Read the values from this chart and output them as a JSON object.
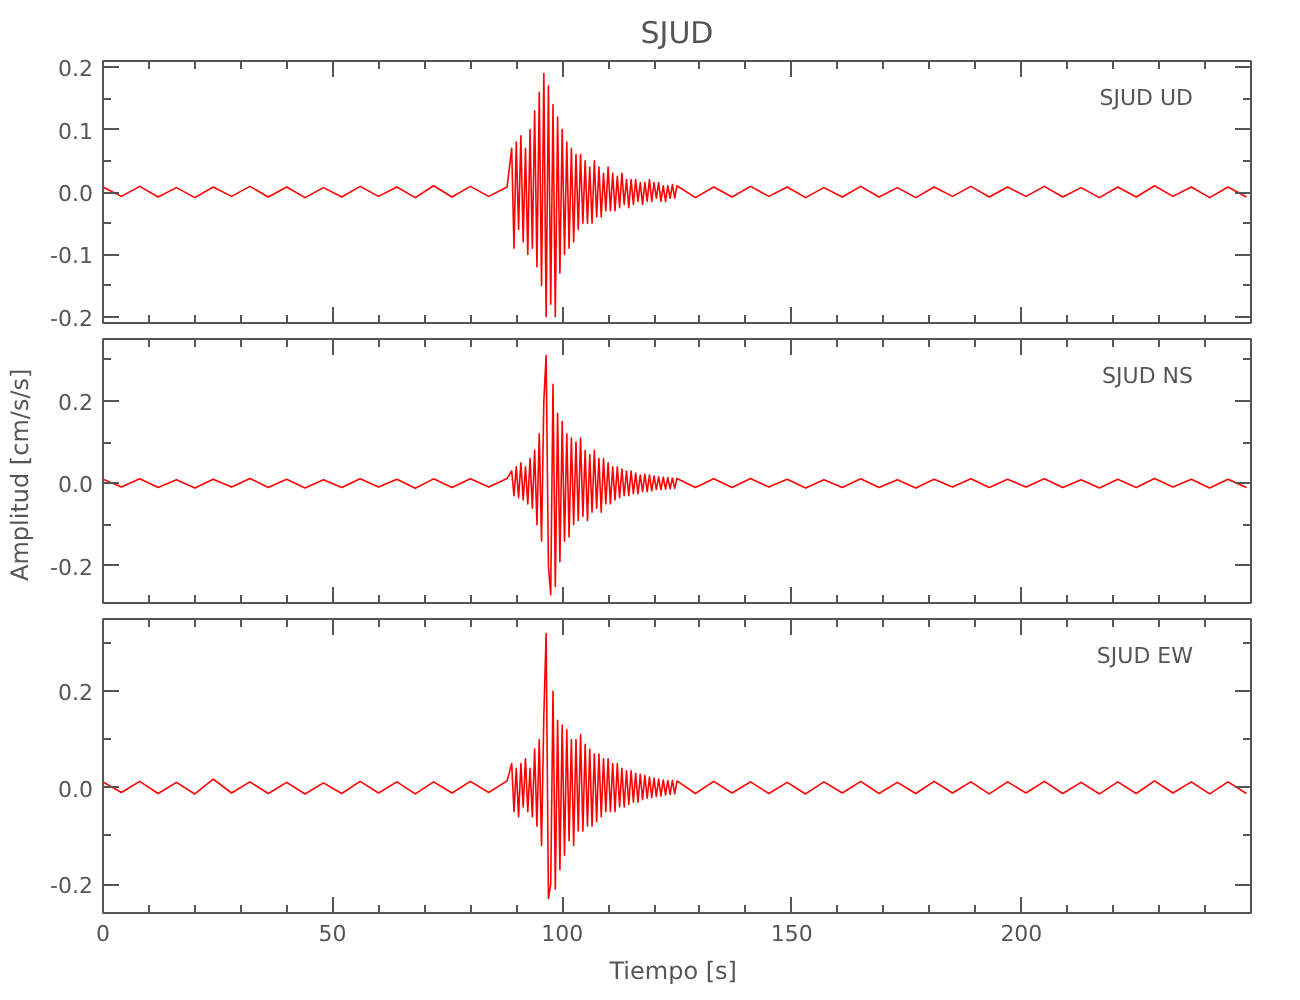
{
  "chart_data": [
    {
      "type": "line",
      "title": "SJUD",
      "annotations": [
        "SJUD   UD"
      ],
      "tick_labels": "y",
      "marker": "none",
      "line_style": "solid",
      "grid": false,
      "x": [
        0,
        4,
        8,
        12,
        16,
        20,
        24,
        28,
        32,
        36,
        40,
        44,
        48,
        52,
        56,
        60,
        64,
        68,
        72,
        76,
        80,
        84,
        88,
        89,
        89.5,
        90,
        90.5,
        91,
        91.5,
        92,
        92.5,
        93,
        93.5,
        94,
        94.5,
        95,
        95.5,
        96,
        96.5,
        97,
        97.5,
        98,
        98.5,
        99,
        99.5,
        100,
        100.5,
        101,
        101.5,
        102,
        102.5,
        103,
        103.5,
        104,
        104.5,
        105,
        105.5,
        106,
        106.5,
        107,
        107.5,
        108,
        108.5,
        109,
        109.5,
        110,
        110.5,
        111,
        111.5,
        112,
        112.5,
        113,
        113.5,
        114,
        114.5,
        115,
        115.5,
        116,
        116.5,
        117,
        117.5,
        118,
        118.5,
        119,
        119.5,
        120,
        120.5,
        121,
        121.5,
        122,
        122.5,
        123,
        123.5,
        124,
        124.5,
        125,
        129,
        133,
        137,
        141,
        145,
        149,
        153,
        157,
        161,
        165,
        169,
        173,
        177,
        181,
        185,
        189,
        193,
        197,
        201,
        205,
        209,
        213,
        217,
        221,
        225,
        229,
        233,
        237,
        241,
        245,
        249
      ],
      "xlim": [
        0,
        250
      ],
      "xticks": [
        0,
        {
          "value": 10,
          "label": null
        },
        {
          "value": 20,
          "label": null
        },
        {
          "value": 30,
          "label": null
        },
        {
          "value": 40,
          "label": null
        },
        50,
        {
          "value": 60,
          "label": null
        },
        {
          "value": 70,
          "label": null
        },
        {
          "value": 80,
          "label": null
        },
        {
          "value": 90,
          "label": null
        },
        100,
        {
          "value": 110,
          "label": null
        },
        {
          "value": 120,
          "label": null
        },
        {
          "value": 130,
          "label": null
        },
        {
          "value": 140,
          "label": null
        },
        150,
        {
          "value": 160,
          "label": null
        },
        {
          "value": 170,
          "label": null
        },
        {
          "value": 180,
          "label": null
        },
        {
          "value": 190,
          "label": null
        },
        200,
        {
          "value": 210,
          "label": null
        },
        {
          "value": 220,
          "label": null
        },
        {
          "value": 230,
          "label": null
        },
        {
          "value": 240,
          "label": null
        }
      ],
      "ylim": [
        -0.21,
        0.21
      ],
      "yticks": [
        -0.2,
        {
          "value": -0.15,
          "label": null
        },
        -0.1,
        {
          "value": -0.05,
          "label": null
        },
        {
          "value": 0,
          "label": "0.0"
        },
        {
          "value": 0.05,
          "label": null
        },
        0.1,
        {
          "value": 0.15,
          "label": null
        },
        0.2
      ],
      "series": [
        {
          "color": "#ff0000",
          "values": [
            0.008,
            -0.007,
            0.009,
            -0.008,
            0.007,
            -0.009,
            0.008,
            -0.007,
            0.009,
            -0.008,
            0.008,
            -0.009,
            0.007,
            -0.008,
            0.009,
            -0.007,
            0.008,
            -0.009,
            0.01,
            -0.008,
            0.009,
            -0.007,
            0.008,
            0.07,
            -0.09,
            0.08,
            -0.06,
            0.09,
            -0.08,
            0.07,
            -0.1,
            0.1,
            -0.09,
            0.13,
            -0.12,
            0.16,
            -0.15,
            0.19,
            -0.2,
            0.17,
            -0.18,
            0.14,
            -0.2,
            0.12,
            -0.13,
            0.1,
            -0.1,
            0.08,
            -0.09,
            0.07,
            -0.08,
            0.06,
            -0.06,
            0.06,
            -0.05,
            0.05,
            -0.05,
            0.04,
            -0.05,
            0.05,
            -0.04,
            0.04,
            -0.04,
            0.03,
            -0.03,
            0.04,
            -0.03,
            0.03,
            -0.03,
            0.025,
            -0.025,
            0.03,
            -0.02,
            0.02,
            -0.025,
            0.02,
            -0.02,
            0.02,
            -0.015,
            0.015,
            -0.02,
            0.015,
            -0.015,
            0.02,
            -0.015,
            0.015,
            -0.01,
            0.015,
            -0.015,
            0.01,
            -0.015,
            0.01,
            -0.01,
            0.012,
            -0.01,
            0.01,
            -0.009,
            0.008,
            -0.008,
            0.009,
            -0.007,
            0.008,
            -0.009,
            0.007,
            -0.008,
            0.009,
            -0.008,
            0.007,
            -0.009,
            0.008,
            -0.007,
            0.009,
            -0.008,
            0.008,
            -0.007,
            0.009,
            -0.008,
            0.007,
            -0.009,
            0.008,
            -0.008,
            0.01,
            -0.007,
            0.008,
            -0.009,
            0.008,
            -0.008
          ]
        }
      ]
    },
    {
      "type": "line",
      "ylabel": "Amplitud  [cm/s/s]",
      "annotations": [
        "SJUD   NS"
      ],
      "tick_labels": "y",
      "marker": "none",
      "line_style": "solid",
      "grid": false,
      "x": [
        0,
        4,
        8,
        12,
        16,
        20,
        24,
        28,
        32,
        36,
        40,
        44,
        48,
        52,
        56,
        60,
        64,
        68,
        72,
        76,
        80,
        84,
        88,
        89,
        89.5,
        90,
        90.5,
        91,
        91.5,
        92,
        92.5,
        93,
        93.5,
        94,
        94.5,
        95,
        95.5,
        96,
        96.5,
        97,
        97.5,
        98,
        98.5,
        99,
        99.5,
        100,
        100.5,
        101,
        101.5,
        102,
        102.5,
        103,
        103.5,
        104,
        104.5,
        105,
        105.5,
        106,
        106.5,
        107,
        107.5,
        108,
        108.5,
        109,
        109.5,
        110,
        110.5,
        111,
        111.5,
        112,
        112.5,
        113,
        113.5,
        114,
        114.5,
        115,
        115.5,
        116,
        116.5,
        117,
        117.5,
        118,
        118.5,
        119,
        119.5,
        120,
        120.5,
        121,
        121.5,
        122,
        122.5,
        123,
        123.5,
        124,
        124.5,
        125,
        129,
        133,
        137,
        141,
        145,
        149,
        153,
        157,
        161,
        165,
        169,
        173,
        177,
        181,
        185,
        189,
        193,
        197,
        201,
        205,
        209,
        213,
        217,
        221,
        225,
        229,
        233,
        237,
        241,
        245,
        249
      ],
      "xlim": [
        0,
        250
      ],
      "xticks": [
        0,
        {
          "value": 10,
          "label": null
        },
        {
          "value": 20,
          "label": null
        },
        {
          "value": 30,
          "label": null
        },
        {
          "value": 40,
          "label": null
        },
        50,
        {
          "value": 60,
          "label": null
        },
        {
          "value": 70,
          "label": null
        },
        {
          "value": 80,
          "label": null
        },
        {
          "value": 90,
          "label": null
        },
        100,
        {
          "value": 110,
          "label": null
        },
        {
          "value": 120,
          "label": null
        },
        {
          "value": 130,
          "label": null
        },
        {
          "value": 140,
          "label": null
        },
        150,
        {
          "value": 160,
          "label": null
        },
        {
          "value": 170,
          "label": null
        },
        {
          "value": 180,
          "label": null
        },
        {
          "value": 190,
          "label": null
        },
        200,
        {
          "value": 210,
          "label": null
        },
        {
          "value": 220,
          "label": null
        },
        {
          "value": 230,
          "label": null
        },
        {
          "value": 240,
          "label": null
        }
      ],
      "ylim": [
        -0.29,
        0.35
      ],
      "yticks": [
        -0.2,
        {
          "value": -0.1,
          "label": null
        },
        {
          "value": 0,
          "label": "0.0"
        },
        {
          "value": 0.1,
          "label": null
        },
        0.2,
        {
          "value": 0.3,
          "label": null
        }
      ],
      "series": [
        {
          "color": "#ff0000",
          "values": [
            0.01,
            -0.009,
            0.011,
            -0.01,
            0.009,
            -0.011,
            0.01,
            -0.009,
            0.012,
            -0.01,
            0.01,
            -0.011,
            0.009,
            -0.01,
            0.011,
            -0.009,
            0.01,
            -0.012,
            0.011,
            -0.01,
            0.011,
            -0.009,
            0.012,
            0.03,
            -0.03,
            0.04,
            -0.035,
            0.05,
            -0.04,
            0.04,
            -0.05,
            0.06,
            -0.06,
            0.08,
            -0.1,
            0.12,
            -0.14,
            0.2,
            0.31,
            -0.2,
            -0.27,
            0.24,
            -0.25,
            0.17,
            -0.19,
            0.15,
            -0.14,
            0.12,
            -0.13,
            0.11,
            -0.1,
            0.1,
            -0.09,
            0.11,
            -0.08,
            0.08,
            -0.09,
            0.07,
            -0.07,
            0.08,
            -0.06,
            0.06,
            -0.07,
            0.06,
            -0.05,
            0.05,
            -0.05,
            0.04,
            -0.04,
            0.04,
            -0.035,
            0.035,
            -0.03,
            0.03,
            -0.03,
            0.03,
            -0.025,
            0.025,
            -0.025,
            0.02,
            -0.02,
            0.022,
            -0.02,
            0.02,
            -0.018,
            0.018,
            -0.015,
            0.016,
            -0.015,
            0.015,
            -0.014,
            0.014,
            -0.013,
            0.013,
            -0.012,
            0.012,
            -0.01,
            0.011,
            -0.01,
            0.012,
            -0.009,
            0.01,
            -0.011,
            0.009,
            -0.01,
            0.011,
            -0.01,
            0.009,
            -0.011,
            0.01,
            -0.009,
            0.011,
            -0.01,
            0.01,
            -0.009,
            0.011,
            -0.01,
            0.009,
            -0.011,
            0.01,
            -0.01,
            0.012,
            -0.009,
            0.01,
            -0.011,
            0.01,
            -0.01
          ]
        }
      ]
    },
    {
      "type": "line",
      "xlabel": "Tiempo  [s]",
      "annotations": [
        "SJUD   EW"
      ],
      "marker": "none",
      "line_style": "solid",
      "grid": false,
      "x": [
        0,
        4,
        8,
        12,
        16,
        20,
        24,
        28,
        32,
        36,
        40,
        44,
        48,
        52,
        56,
        60,
        64,
        68,
        72,
        76,
        80,
        84,
        88,
        89,
        89.5,
        90,
        90.5,
        91,
        91.5,
        92,
        92.5,
        93,
        93.5,
        94,
        94.5,
        95,
        95.5,
        96,
        96.5,
        97,
        97.5,
        98,
        98.5,
        99,
        99.5,
        100,
        100.5,
        101,
        101.5,
        102,
        102.5,
        103,
        103.5,
        104,
        104.5,
        105,
        105.5,
        106,
        106.5,
        107,
        107.5,
        108,
        108.5,
        109,
        109.5,
        110,
        110.5,
        111,
        111.5,
        112,
        112.5,
        113,
        113.5,
        114,
        114.5,
        115,
        115.5,
        116,
        116.5,
        117,
        117.5,
        118,
        118.5,
        119,
        119.5,
        120,
        120.5,
        121,
        121.5,
        122,
        122.5,
        123,
        123.5,
        124,
        124.5,
        125,
        129,
        133,
        137,
        141,
        145,
        149,
        153,
        157,
        161,
        165,
        169,
        173,
        177,
        181,
        185,
        189,
        193,
        197,
        201,
        205,
        209,
        213,
        217,
        221,
        225,
        229,
        233,
        237,
        241,
        245,
        249
      ],
      "xlim": [
        0,
        250
      ],
      "xticks": [
        0,
        {
          "value": 10,
          "label": null
        },
        {
          "value": 20,
          "label": null
        },
        {
          "value": 30,
          "label": null
        },
        {
          "value": 40,
          "label": null
        },
        50,
        {
          "value": 60,
          "label": null
        },
        {
          "value": 70,
          "label": null
        },
        {
          "value": 80,
          "label": null
        },
        {
          "value": 90,
          "label": null
        },
        100,
        {
          "value": 110,
          "label": null
        },
        {
          "value": 120,
          "label": null
        },
        {
          "value": 130,
          "label": null
        },
        {
          "value": 140,
          "label": null
        },
        150,
        {
          "value": 160,
          "label": null
        },
        {
          "value": 170,
          "label": null
        },
        {
          "value": 180,
          "label": null
        },
        {
          "value": 190,
          "label": null
        },
        200,
        {
          "value": 210,
          "label": null
        },
        {
          "value": 220,
          "label": null
        },
        {
          "value": 230,
          "label": null
        },
        {
          "value": 240,
          "label": null
        }
      ],
      "ylim": [
        -0.26,
        0.35
      ],
      "yticks": [
        -0.2,
        {
          "value": -0.1,
          "label": null
        },
        {
          "value": 0,
          "label": "0.0"
        },
        {
          "value": 0.1,
          "label": null
        },
        0.2,
        {
          "value": 0.3,
          "label": null
        }
      ],
      "series": [
        {
          "color": "#ff0000",
          "values": [
            0.012,
            -0.01,
            0.013,
            -0.012,
            0.011,
            -0.013,
            0.018,
            -0.011,
            0.012,
            -0.012,
            0.011,
            -0.013,
            0.01,
            -0.012,
            0.013,
            -0.011,
            0.012,
            -0.013,
            0.012,
            -0.011,
            0.013,
            -0.01,
            0.014,
            0.05,
            -0.05,
            0.04,
            -0.06,
            0.05,
            -0.04,
            0.06,
            -0.05,
            0.04,
            -0.06,
            0.08,
            -0.08,
            0.1,
            -0.12,
            0.15,
            0.32,
            -0.23,
            -0.2,
            0.2,
            -0.21,
            0.14,
            -0.17,
            0.13,
            -0.14,
            0.12,
            -0.11,
            0.1,
            -0.12,
            0.1,
            -0.09,
            0.11,
            -0.09,
            0.09,
            -0.08,
            0.08,
            -0.08,
            0.07,
            -0.07,
            0.07,
            -0.06,
            0.06,
            -0.05,
            0.06,
            -0.05,
            0.05,
            -0.05,
            0.05,
            -0.04,
            0.04,
            -0.04,
            0.035,
            -0.035,
            0.035,
            -0.03,
            0.03,
            -0.03,
            0.028,
            -0.025,
            0.025,
            -0.022,
            0.022,
            -0.02,
            0.02,
            -0.018,
            0.018,
            -0.017,
            0.016,
            -0.015,
            0.015,
            -0.014,
            0.015,
            -0.013,
            0.014,
            -0.012,
            0.013,
            -0.011,
            0.012,
            -0.012,
            0.011,
            -0.013,
            0.012,
            -0.011,
            0.013,
            -0.012,
            0.011,
            -0.012,
            0.013,
            -0.011,
            0.012,
            -0.013,
            0.012,
            -0.011,
            0.013,
            -0.012,
            0.011,
            -0.013,
            0.012,
            -0.012,
            0.014,
            -0.011,
            0.012,
            -0.013,
            0.012,
            -0.012
          ]
        }
      ]
    }
  ]
}
